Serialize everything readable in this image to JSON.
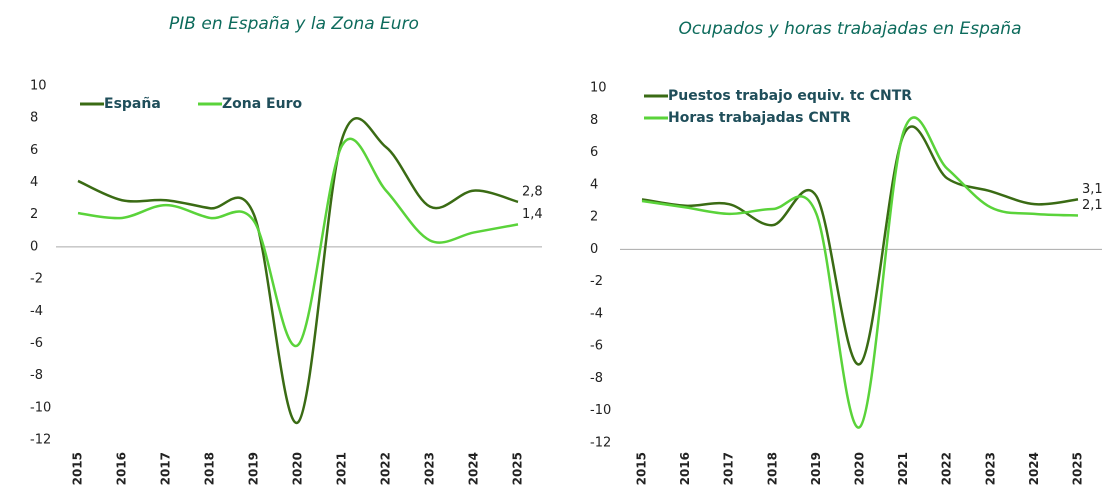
{
  "chart_data": [
    {
      "type": "line",
      "title": "PIB en España y la Zona Euro",
      "categories": [
        "2015",
        "2016",
        "2017",
        "2018",
        "2019",
        "2020",
        "2021",
        "2022",
        "2023",
        "2024",
        "2025"
      ],
      "series": [
        {
          "name": "España",
          "color": "#3a6b14",
          "values": [
            4.1,
            2.9,
            2.9,
            2.4,
            2.0,
            -10.9,
            6.7,
            6.2,
            2.5,
            3.5,
            2.8
          ],
          "value_labels": [
            null,
            null,
            null,
            null,
            null,
            null,
            null,
            null,
            null,
            null,
            "2,8"
          ]
        },
        {
          "name": "Zona Euro",
          "color": "#5ad33a",
          "values": [
            2.1,
            1.8,
            2.6,
            1.8,
            1.6,
            -6.1,
            6.3,
            3.5,
            0.4,
            0.9,
            1.4
          ],
          "value_labels": [
            null,
            null,
            null,
            null,
            null,
            null,
            null,
            null,
            null,
            null,
            "1,4"
          ]
        }
      ],
      "ylim": [
        -12,
        10
      ],
      "yticks": [
        10,
        8,
        6,
        4,
        2,
        0,
        -2,
        -4,
        -6,
        -8,
        -10,
        -12
      ],
      "legend": "top-left"
    },
    {
      "type": "line",
      "title": "Ocupados y horas trabajadas en España",
      "categories": [
        "2015",
        "2016",
        "2017",
        "2018",
        "2019",
        "2020",
        "2021",
        "2022",
        "2023",
        "2024",
        "2025"
      ],
      "series": [
        {
          "name": "Puestos trabajo equiv. tc CNTR",
          "color": "#3a6b14",
          "values": [
            3.1,
            2.7,
            2.8,
            1.5,
            3.3,
            -7.1,
            7.1,
            4.4,
            3.6,
            2.8,
            3.1
          ],
          "value_labels": [
            null,
            null,
            null,
            null,
            null,
            null,
            null,
            null,
            null,
            null,
            "3,1"
          ]
        },
        {
          "name": "Horas trabajadas CNTR",
          "color": "#5ad33a",
          "values": [
            3.0,
            2.6,
            2.2,
            2.5,
            2.2,
            -11.0,
            7.3,
            5.0,
            2.6,
            2.2,
            2.1
          ],
          "value_labels": [
            null,
            null,
            null,
            null,
            null,
            null,
            null,
            null,
            null,
            null,
            "2,1"
          ]
        }
      ],
      "ylim": [
        -12,
        10
      ],
      "yticks": [
        10,
        8,
        6,
        4,
        2,
        0,
        -2,
        -4,
        -6,
        -8,
        -10,
        -12
      ],
      "legend": "top-left"
    }
  ]
}
